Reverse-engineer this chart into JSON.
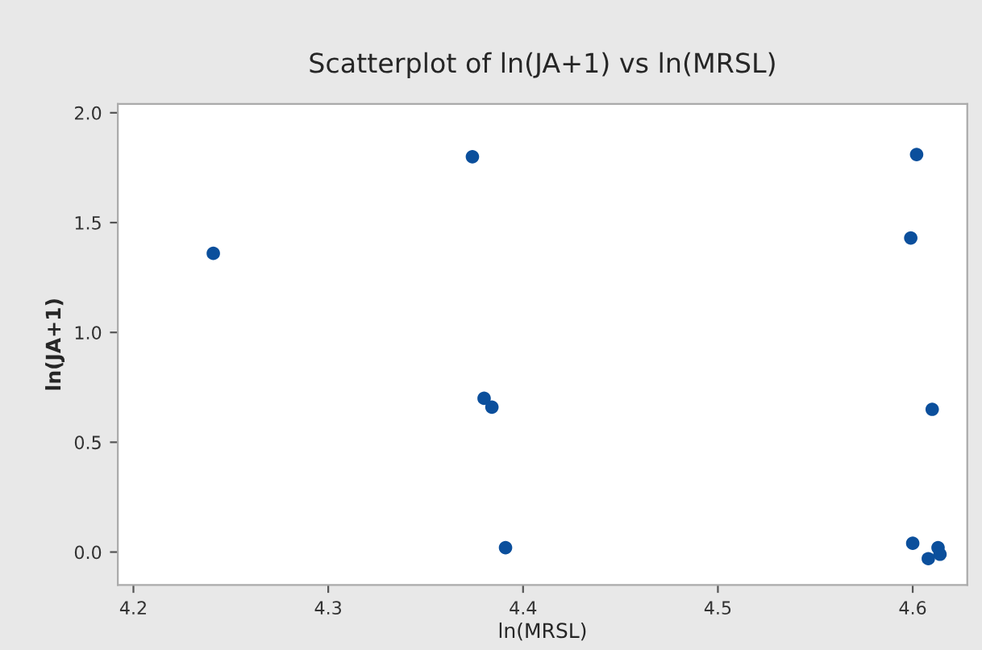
{
  "chart_data": {
    "type": "scatter",
    "title": "Scatterplot of ln(JA+1) vs ln(MRSL)",
    "xlabel": "ln(MRSL)",
    "ylabel": "ln(JA+1)",
    "x": [
      4.241,
      4.374,
      4.38,
      4.384,
      4.391,
      4.602,
      4.599,
      4.61,
      4.6,
      4.608,
      4.613,
      4.614
    ],
    "series": [
      {
        "color": "#0b4f9c",
        "values": [
          1.36,
          1.8,
          0.7,
          0.66,
          0.02,
          1.81,
          1.43,
          0.65,
          0.04,
          -0.03,
          0.02,
          -0.01
        ]
      }
    ],
    "xlim": [
      4.192,
      4.628
    ],
    "ylim": [
      -0.15,
      2.04
    ],
    "xticks": [
      4.2,
      4.3,
      4.4,
      4.5,
      4.6
    ],
    "yticks": [
      {
        "value": 0,
        "label": "0.0"
      },
      0.5,
      {
        "value": 1,
        "label": "1.0"
      },
      1.5,
      {
        "value": 2,
        "label": "2.0"
      }
    ],
    "marker": "circle",
    "grid": false,
    "legend": false
  }
}
